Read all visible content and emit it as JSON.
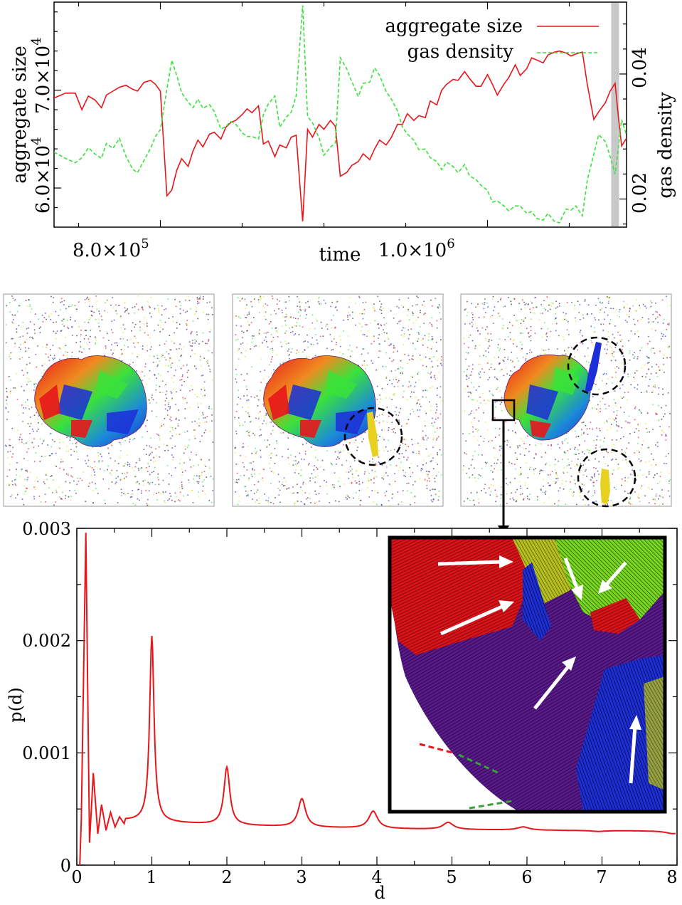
{
  "chart_data": [
    {
      "type": "line",
      "name": "top-timeseries",
      "xlabel": "time",
      "ylabel_left": "aggregate size",
      "ylabel_right": "gas density",
      "x_ticks": [
        {
          "value": 800000,
          "label": "8.0×10",
          "exp": "5"
        },
        {
          "value": 1000000,
          "label": "1.0×10",
          "exp": "6"
        }
      ],
      "y_left_ticks": [
        {
          "value": 60000,
          "label": "6.0×10",
          "exp": "4"
        },
        {
          "value": 70000,
          "label": "7.0×10",
          "exp": "4"
        }
      ],
      "y_right_ticks": [
        {
          "value": 0.02,
          "label": "0.02"
        },
        {
          "value": 0.04,
          "label": "0.04"
        }
      ],
      "xlim": [
        735000,
        1085000
      ],
      "ylim_left": [
        56000,
        79000
      ],
      "ylim_right": [
        0.0155,
        0.0515
      ],
      "highlight_x": 1078000,
      "legend": [
        {
          "label": "aggregate size",
          "color": "#e8161b",
          "dash": "solid"
        },
        {
          "label": "gas density",
          "color": "#3ae23a",
          "dash": "dashed"
        }
      ],
      "series": [
        {
          "name": "aggregate size",
          "axis": "left",
          "color": "#e8161b",
          "x": [
            735000,
            742000,
            748000,
            752000,
            756000,
            760000,
            764000,
            767000,
            771000,
            775000,
            779000,
            783000,
            786000,
            790000,
            794000,
            797000,
            800000,
            804000,
            807000,
            810000,
            813000,
            817000,
            820000,
            823000,
            826000,
            830000,
            833000,
            837000,
            840000,
            843000,
            846000,
            850000,
            853000,
            856000,
            860000,
            863000,
            866000,
            870000,
            873000,
            877000,
            880000,
            883000,
            887000,
            890000,
            893000,
            897000,
            900000,
            904000,
            907000,
            910000,
            914000,
            917000,
            921000,
            924000,
            928000,
            931000,
            934000,
            938000,
            941000,
            945000,
            948000,
            951000,
            955000,
            958000,
            962000,
            965000,
            969000,
            972000,
            975000,
            979000,
            982000,
            986000,
            989000,
            993000,
            996000,
            1000000,
            1003000,
            1006000,
            1010000,
            1013000,
            1017000,
            1020000,
            1024000,
            1027000,
            1030000,
            1034000,
            1037000,
            1041000,
            1044000,
            1048000,
            1051000,
            1054000,
            1058000,
            1061000,
            1065000,
            1068000,
            1072000,
            1075000,
            1078000,
            1080000,
            1082000,
            1085000
          ],
          "y": [
            69200,
            69700,
            69700,
            68000,
            69400,
            69000,
            68200,
            69500,
            69900,
            70300,
            70500,
            70100,
            69900,
            70800,
            71000,
            70600,
            69900,
            59200,
            59800,
            61800,
            63000,
            62200,
            63800,
            64900,
            64200,
            65500,
            65700,
            65000,
            66200,
            66700,
            66900,
            67500,
            68100,
            67700,
            68400,
            64500,
            64800,
            63200,
            64400,
            64100,
            65200,
            65400,
            56600,
            66000,
            65200,
            66500,
            66000,
            66900,
            66300,
            61200,
            61600,
            62300,
            62700,
            63500,
            62900,
            64000,
            64900,
            64400,
            65100,
            66500,
            66500,
            67600,
            66900,
            67400,
            67200,
            68900,
            68500,
            70000,
            70600,
            71100,
            71000,
            71900,
            71200,
            70400,
            70400,
            71600,
            70600,
            69500,
            70600,
            71300,
            72600,
            71500,
            72200,
            73300,
            73100,
            72800,
            73600,
            73900,
            74000,
            73800,
            73500,
            73700,
            73900,
            70600,
            67000,
            67800,
            68700,
            69900,
            70700,
            67300,
            64300,
            65100
          ]
        },
        {
          "name": "gas density",
          "axis": "right",
          "color": "#3ae23a",
          "x": [
            735000,
            742000,
            748000,
            752000,
            756000,
            760000,
            764000,
            767000,
            771000,
            775000,
            779000,
            783000,
            786000,
            790000,
            794000,
            797000,
            800000,
            804000,
            807000,
            810000,
            813000,
            817000,
            820000,
            823000,
            826000,
            830000,
            833000,
            837000,
            840000,
            843000,
            846000,
            850000,
            853000,
            856000,
            860000,
            863000,
            866000,
            870000,
            873000,
            877000,
            880000,
            883000,
            887000,
            890000,
            893000,
            897000,
            900000,
            904000,
            907000,
            910000,
            914000,
            917000,
            921000,
            924000,
            928000,
            931000,
            934000,
            938000,
            941000,
            945000,
            948000,
            951000,
            955000,
            958000,
            962000,
            965000,
            969000,
            972000,
            975000,
            979000,
            982000,
            986000,
            989000,
            993000,
            996000,
            1000000,
            1003000,
            1006000,
            1010000,
            1013000,
            1017000,
            1020000,
            1024000,
            1027000,
            1030000,
            1034000,
            1037000,
            1041000,
            1044000,
            1048000,
            1051000,
            1054000,
            1058000,
            1061000,
            1065000,
            1068000,
            1072000,
            1075000,
            1078000,
            1080000,
            1082000,
            1085000
          ],
          "y": [
            0.0275,
            0.0265,
            0.0258,
            0.0266,
            0.0282,
            0.0272,
            0.0265,
            0.0289,
            0.0281,
            0.0297,
            0.0268,
            0.0248,
            0.0242,
            0.0262,
            0.0281,
            0.03,
            0.0311,
            0.0376,
            0.0422,
            0.0398,
            0.037,
            0.0355,
            0.0346,
            0.036,
            0.0345,
            0.0351,
            0.034,
            0.0312,
            0.0316,
            0.0324,
            0.032,
            0.0306,
            0.03,
            0.03,
            0.0296,
            0.0335,
            0.0352,
            0.0365,
            0.0315,
            0.0331,
            0.0339,
            0.0365,
            0.051,
            0.0332,
            0.0322,
            0.0298,
            0.027,
            0.0283,
            0.029,
            0.0426,
            0.0408,
            0.0388,
            0.0364,
            0.0385,
            0.0387,
            0.041,
            0.0398,
            0.0372,
            0.0361,
            0.0341,
            0.0315,
            0.0304,
            0.0294,
            0.0279,
            0.028,
            0.0266,
            0.026,
            0.0247,
            0.0259,
            0.0252,
            0.0242,
            0.0255,
            0.0237,
            0.0231,
            0.0222,
            0.0214,
            0.0195,
            0.0197,
            0.0189,
            0.0181,
            0.0189,
            0.0189,
            0.0177,
            0.018,
            0.0169,
            0.0166,
            0.0177,
            0.0164,
            0.0162,
            0.0184,
            0.0182,
            0.0189,
            0.0173,
            0.023,
            0.0272,
            0.0303,
            0.0292,
            0.0268,
            0.024,
            0.0282,
            0.0327,
            0.0302
          ]
        }
      ]
    },
    {
      "type": "line",
      "name": "bottom-pd",
      "xlabel": "d",
      "ylabel": "p(d)",
      "xlim": [
        0,
        8
      ],
      "ylim": [
        0,
        0.003
      ],
      "x_ticks": [
        {
          "value": 0,
          "label": "0"
        },
        {
          "value": 1,
          "label": "1"
        },
        {
          "value": 2,
          "label": "2"
        },
        {
          "value": 3,
          "label": "3"
        },
        {
          "value": 4,
          "label": "4"
        },
        {
          "value": 5,
          "label": "5"
        },
        {
          "value": 6,
          "label": "6"
        },
        {
          "value": 7,
          "label": "7"
        },
        {
          "value": 8,
          "label": "8"
        }
      ],
      "y_ticks": [
        {
          "value": 0,
          "label": "0"
        },
        {
          "value": 0.001,
          "label": "0.001"
        },
        {
          "value": 0.002,
          "label": "0.002"
        },
        {
          "value": 0.003,
          "label": "0.003"
        }
      ],
      "series": [
        {
          "name": "p(d)",
          "color": "#e8161b",
          "peaks": [
            {
              "d": 1,
              "height": 0.00204
            },
            {
              "d": 2,
              "height": 0.00087
            },
            {
              "d": 3,
              "height": 0.00059
            },
            {
              "d": 3.95,
              "height": 0.00048
            },
            {
              "d": 4.95,
              "height": 0.00038
            },
            {
              "d": 5.95,
              "height": 0.00034
            },
            {
              "d": 6.95,
              "height": 0.0003
            },
            {
              "d": 7.95,
              "height": 0.00028
            }
          ],
          "initial_peak": {
            "d": 0.12,
            "height": 0.00296
          },
          "oscillations": [
            {
              "d": 0.22,
              "height": 0.00082
            },
            {
              "d": 0.33,
              "height": 0.00054
            },
            {
              "d": 0.45,
              "height": 0.00047
            },
            {
              "d": 0.57,
              "height": 0.00043
            }
          ]
        }
      ]
    }
  ],
  "snapshots": [
    {
      "name": "snapshot-1",
      "circles": 0
    },
    {
      "name": "snapshot-2",
      "circles": 1
    },
    {
      "name": "snapshot-3",
      "circles": 2
    }
  ],
  "colors": {
    "red": "#e8161b",
    "green": "#3ae23a",
    "blue": "#1c2ed8",
    "purple": "#5a1a8a",
    "yellow": "#e8e020",
    "gray": "#c8c8c8"
  }
}
